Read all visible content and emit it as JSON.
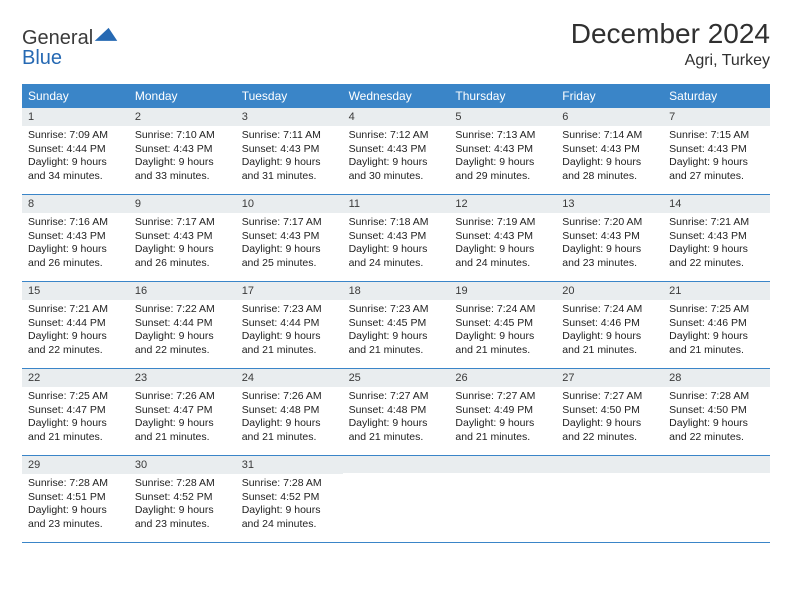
{
  "logo": {
    "word1": "General",
    "word2": "Blue"
  },
  "title": "December 2024",
  "location": "Agri, Turkey",
  "colors": {
    "header_bg": "#3a85c8",
    "header_text": "#ffffff",
    "daynum_bg": "#e9edef",
    "body_text": "#222222",
    "rule": "#3a85c8",
    "logo_blue": "#2669b3"
  },
  "typography": {
    "title_fontsize_pt": 21,
    "location_fontsize_pt": 12,
    "header_cell_fontsize_pt": 9,
    "daynum_fontsize_pt": 8.5,
    "body_fontsize_pt": 8
  },
  "weekdays": [
    "Sunday",
    "Monday",
    "Tuesday",
    "Wednesday",
    "Thursday",
    "Friday",
    "Saturday"
  ],
  "weeks": [
    [
      {
        "n": "1",
        "sunrise": "7:09 AM",
        "sunset": "4:44 PM",
        "dl_h": "9",
        "dl_m": "34"
      },
      {
        "n": "2",
        "sunrise": "7:10 AM",
        "sunset": "4:43 PM",
        "dl_h": "9",
        "dl_m": "33"
      },
      {
        "n": "3",
        "sunrise": "7:11 AM",
        "sunset": "4:43 PM",
        "dl_h": "9",
        "dl_m": "31"
      },
      {
        "n": "4",
        "sunrise": "7:12 AM",
        "sunset": "4:43 PM",
        "dl_h": "9",
        "dl_m": "30"
      },
      {
        "n": "5",
        "sunrise": "7:13 AM",
        "sunset": "4:43 PM",
        "dl_h": "9",
        "dl_m": "29"
      },
      {
        "n": "6",
        "sunrise": "7:14 AM",
        "sunset": "4:43 PM",
        "dl_h": "9",
        "dl_m": "28"
      },
      {
        "n": "7",
        "sunrise": "7:15 AM",
        "sunset": "4:43 PM",
        "dl_h": "9",
        "dl_m": "27"
      }
    ],
    [
      {
        "n": "8",
        "sunrise": "7:16 AM",
        "sunset": "4:43 PM",
        "dl_h": "9",
        "dl_m": "26"
      },
      {
        "n": "9",
        "sunrise": "7:17 AM",
        "sunset": "4:43 PM",
        "dl_h": "9",
        "dl_m": "26"
      },
      {
        "n": "10",
        "sunrise": "7:17 AM",
        "sunset": "4:43 PM",
        "dl_h": "9",
        "dl_m": "25"
      },
      {
        "n": "11",
        "sunrise": "7:18 AM",
        "sunset": "4:43 PM",
        "dl_h": "9",
        "dl_m": "24"
      },
      {
        "n": "12",
        "sunrise": "7:19 AM",
        "sunset": "4:43 PM",
        "dl_h": "9",
        "dl_m": "24"
      },
      {
        "n": "13",
        "sunrise": "7:20 AM",
        "sunset": "4:43 PM",
        "dl_h": "9",
        "dl_m": "23"
      },
      {
        "n": "14",
        "sunrise": "7:21 AM",
        "sunset": "4:43 PM",
        "dl_h": "9",
        "dl_m": "22"
      }
    ],
    [
      {
        "n": "15",
        "sunrise": "7:21 AM",
        "sunset": "4:44 PM",
        "dl_h": "9",
        "dl_m": "22"
      },
      {
        "n": "16",
        "sunrise": "7:22 AM",
        "sunset": "4:44 PM",
        "dl_h": "9",
        "dl_m": "22"
      },
      {
        "n": "17",
        "sunrise": "7:23 AM",
        "sunset": "4:44 PM",
        "dl_h": "9",
        "dl_m": "21"
      },
      {
        "n": "18",
        "sunrise": "7:23 AM",
        "sunset": "4:45 PM",
        "dl_h": "9",
        "dl_m": "21"
      },
      {
        "n": "19",
        "sunrise": "7:24 AM",
        "sunset": "4:45 PM",
        "dl_h": "9",
        "dl_m": "21"
      },
      {
        "n": "20",
        "sunrise": "7:24 AM",
        "sunset": "4:46 PM",
        "dl_h": "9",
        "dl_m": "21"
      },
      {
        "n": "21",
        "sunrise": "7:25 AM",
        "sunset": "4:46 PM",
        "dl_h": "9",
        "dl_m": "21"
      }
    ],
    [
      {
        "n": "22",
        "sunrise": "7:25 AM",
        "sunset": "4:47 PM",
        "dl_h": "9",
        "dl_m": "21"
      },
      {
        "n": "23",
        "sunrise": "7:26 AM",
        "sunset": "4:47 PM",
        "dl_h": "9",
        "dl_m": "21"
      },
      {
        "n": "24",
        "sunrise": "7:26 AM",
        "sunset": "4:48 PM",
        "dl_h": "9",
        "dl_m": "21"
      },
      {
        "n": "25",
        "sunrise": "7:27 AM",
        "sunset": "4:48 PM",
        "dl_h": "9",
        "dl_m": "21"
      },
      {
        "n": "26",
        "sunrise": "7:27 AM",
        "sunset": "4:49 PM",
        "dl_h": "9",
        "dl_m": "21"
      },
      {
        "n": "27",
        "sunrise": "7:27 AM",
        "sunset": "4:50 PM",
        "dl_h": "9",
        "dl_m": "22"
      },
      {
        "n": "28",
        "sunrise": "7:28 AM",
        "sunset": "4:50 PM",
        "dl_h": "9",
        "dl_m": "22"
      }
    ],
    [
      {
        "n": "29",
        "sunrise": "7:28 AM",
        "sunset": "4:51 PM",
        "dl_h": "9",
        "dl_m": "23"
      },
      {
        "n": "30",
        "sunrise": "7:28 AM",
        "sunset": "4:52 PM",
        "dl_h": "9",
        "dl_m": "23"
      },
      {
        "n": "31",
        "sunrise": "7:28 AM",
        "sunset": "4:52 PM",
        "dl_h": "9",
        "dl_m": "24"
      },
      null,
      null,
      null,
      null
    ]
  ],
  "labels": {
    "sunrise_prefix": "Sunrise: ",
    "sunset_prefix": "Sunset: ",
    "daylight_prefix": "Daylight: ",
    "hours_word": " hours",
    "and_word": "and ",
    "minutes_word": " minutes."
  }
}
